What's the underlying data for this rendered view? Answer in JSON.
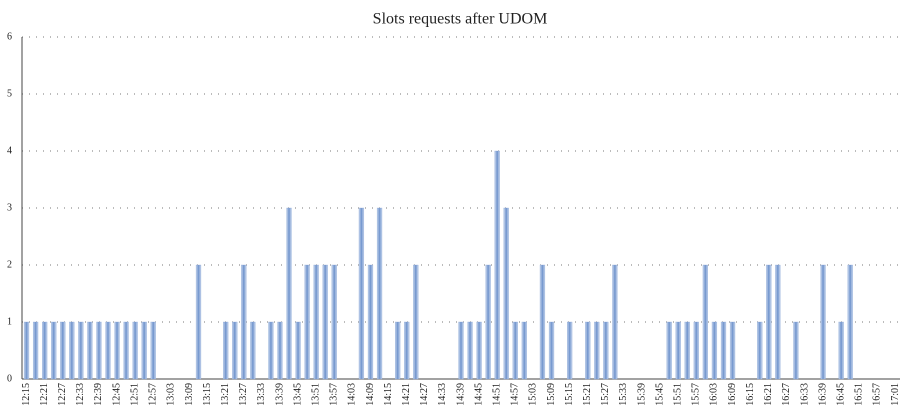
{
  "chart_data": {
    "type": "bar",
    "title": "Slots requests after UDOM",
    "categories": [
      "12:15",
      null,
      "12:21",
      null,
      "12:27",
      null,
      "12:33",
      null,
      "12:39",
      null,
      "12:45",
      null,
      "12:51",
      null,
      "12:57",
      null,
      "13:03",
      null,
      "13:09",
      null,
      "13:15",
      null,
      "13:21",
      null,
      "13:27",
      null,
      "13:33",
      null,
      "13:39",
      null,
      "13:45",
      null,
      "13:51",
      null,
      "13:57",
      null,
      "14:03",
      null,
      "14:09",
      null,
      "14:15",
      null,
      "14:21",
      null,
      "14:27",
      null,
      "14:33",
      null,
      "14:39",
      null,
      "14:45",
      null,
      "14:51",
      null,
      "14:57",
      null,
      "15:03",
      null,
      "15:09",
      null,
      "15:15",
      null,
      "15:21",
      null,
      "15:27",
      null,
      "15:33",
      null,
      "15:39",
      null,
      "15:45",
      null,
      "15:51",
      null,
      "15:57",
      null,
      "16:03",
      null,
      "16:09",
      null,
      "16:15",
      null,
      "16:21",
      null,
      "16:27",
      null,
      "16:33",
      null,
      "16:39",
      null,
      "16:45",
      null,
      "16:51",
      null,
      "16:57",
      null,
      "17:01"
    ],
    "values": [
      1,
      1,
      1,
      1,
      1,
      1,
      1,
      1,
      1,
      1,
      1,
      1,
      1,
      1,
      1,
      0,
      0,
      0,
      0,
      2,
      0,
      0,
      1,
      1,
      2,
      1,
      0,
      1,
      1,
      3,
      1,
      2,
      2,
      2,
      2,
      0,
      0,
      3,
      2,
      3,
      0,
      1,
      1,
      2,
      0,
      0,
      0,
      0,
      1,
      1,
      1,
      2,
      4,
      3,
      1,
      1,
      0,
      2,
      1,
      0,
      1,
      0,
      1,
      1,
      1,
      2,
      0,
      0,
      0,
      0,
      0,
      1,
      1,
      1,
      1,
      2,
      1,
      1,
      1,
      0,
      0,
      1,
      2,
      2,
      0,
      1,
      0,
      0,
      2,
      0,
      1,
      2,
      0,
      0,
      0,
      0,
      0
    ],
    "color": "#7f9fd2",
    "ylim": [
      0,
      6
    ],
    "yticks": [
      0,
      1,
      2,
      3,
      4,
      5,
      6
    ],
    "grid": true
  }
}
